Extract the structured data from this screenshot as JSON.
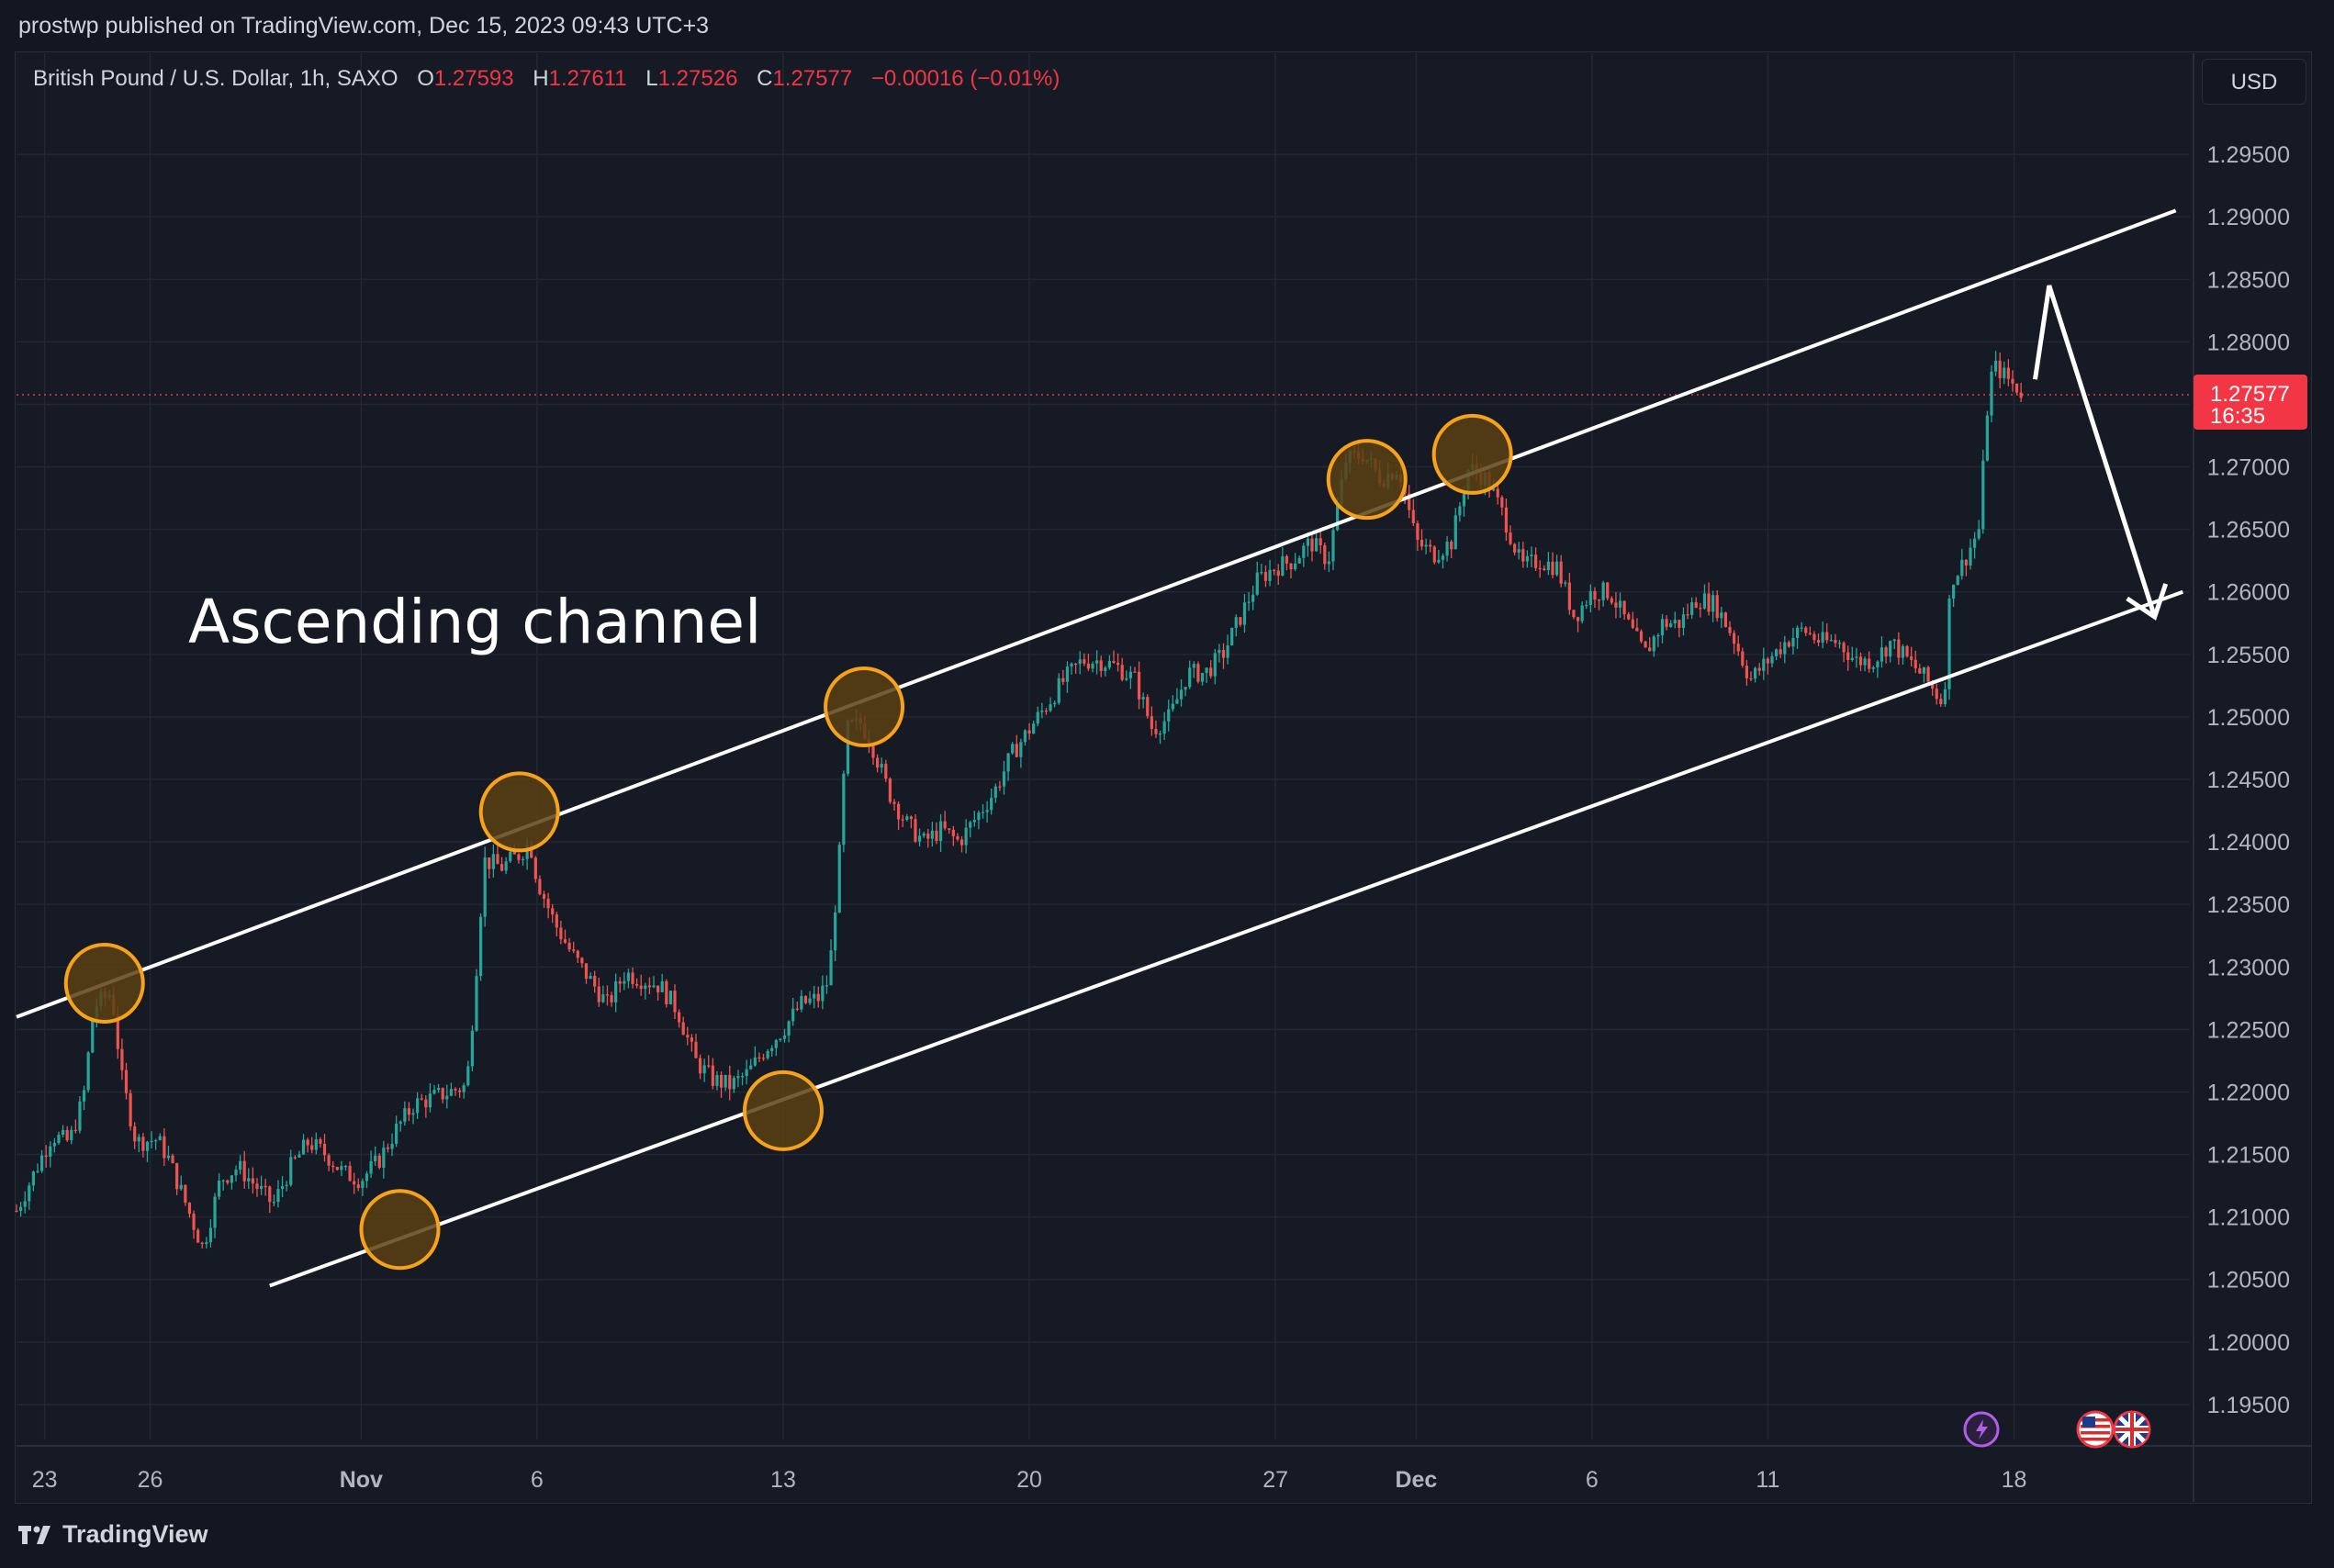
{
  "header": {
    "publish_line": "prostwp published on TradingView.com, Dec 15, 2023 09:43 UTC+3"
  },
  "legend": {
    "symbol": "British Pound / U.S. Dollar, 1h, SAXO",
    "open_label": "O",
    "open": "1.27593",
    "high_label": "H",
    "high": "1.27611",
    "low_label": "L",
    "low": "1.27526",
    "close_label": "C",
    "close": "1.27577",
    "change": "−0.00016 (−0.01%)"
  },
  "currency_button": "USD",
  "price_tag": {
    "price": "1.27577",
    "countdown": "16:35"
  },
  "footer": {
    "brand": "TradingView"
  },
  "colors": {
    "background": "#161a25",
    "grid": "#232733",
    "up": "#26a69a",
    "down": "#ef5350",
    "price_tag": "#f23645",
    "circle_stroke": "#f7a21b",
    "circle_fill": "#5a4114",
    "line": "#ffffff"
  },
  "icons": [
    "lightning-event-icon",
    "us-flag-icon",
    "uk-flag-icon",
    "tradingview-logo-icon"
  ],
  "chart_data": {
    "type": "candlestick",
    "title": "British Pound / U.S. Dollar, 1h, SAXO",
    "annotation": "Ascending channel",
    "yaxis_ticks": [
      "1.29500",
      "1.29000",
      "1.28500",
      "1.28000",
      "1.27500",
      "1.27000",
      "1.26500",
      "1.26000",
      "1.25500",
      "1.25000",
      "1.24500",
      "1.24000",
      "1.23500",
      "1.23000",
      "1.22500",
      "1.22000",
      "1.21500",
      "1.21000",
      "1.20500",
      "1.20000",
      "1.19500"
    ],
    "ylim": [
      1.19,
      1.3
    ],
    "xaxis_ticks": [
      {
        "label": "23",
        "day": 0
      },
      {
        "label": "26",
        "day": 3
      },
      {
        "label": "Nov",
        "day": 9
      },
      {
        "label": "6",
        "day": 14
      },
      {
        "label": "13",
        "day": 21
      },
      {
        "label": "20",
        "day": 28
      },
      {
        "label": "27",
        "day": 35
      },
      {
        "label": "Dec",
        "day": 39
      },
      {
        "label": "6",
        "day": 44
      },
      {
        "label": "11",
        "day": 49
      },
      {
        "label": "18",
        "day": 56
      }
    ],
    "xlim": [
      -0.8,
      61
    ],
    "price_path": [
      [
        -0.8,
        1.2105
      ],
      [
        0.2,
        1.2165
      ],
      [
        0.7,
        1.216
      ],
      [
        1.1,
        1.2195
      ],
      [
        1.4,
        1.2268
      ],
      [
        1.9,
        1.228
      ],
      [
        2.2,
        1.221
      ],
      [
        2.6,
        1.216
      ],
      [
        3.2,
        1.2162
      ],
      [
        3.5,
        1.2148
      ],
      [
        4.5,
        1.2075
      ],
      [
        5.0,
        1.213
      ],
      [
        5.5,
        1.214
      ],
      [
        6.0,
        1.2125
      ],
      [
        6.5,
        1.211
      ],
      [
        7.0,
        1.214
      ],
      [
        7.5,
        1.216
      ],
      [
        8.0,
        1.215
      ],
      [
        8.5,
        1.2135
      ],
      [
        9.0,
        1.213
      ],
      [
        9.5,
        1.2145
      ],
      [
        10.0,
        1.217
      ],
      [
        10.5,
        1.219
      ],
      [
        11.0,
        1.2195
      ],
      [
        12.0,
        1.2205
      ],
      [
        12.2,
        1.227
      ],
      [
        12.5,
        1.2385
      ],
      [
        13.0,
        1.238
      ],
      [
        13.5,
        1.239
      ],
      [
        13.8,
        1.24
      ],
      [
        14.0,
        1.237
      ],
      [
        14.5,
        1.2335
      ],
      [
        15.0,
        1.231
      ],
      [
        15.5,
        1.229
      ],
      [
        16.0,
        1.227
      ],
      [
        16.5,
        1.2295
      ],
      [
        17.0,
        1.229
      ],
      [
        17.5,
        1.2285
      ],
      [
        18.0,
        1.2265
      ],
      [
        18.5,
        1.2225
      ],
      [
        19.0,
        1.221
      ],
      [
        19.5,
        1.2205
      ],
      [
        20.0,
        1.2215
      ],
      [
        20.5,
        1.2235
      ],
      [
        21.0,
        1.225
      ],
      [
        21.5,
        1.227
      ],
      [
        22.0,
        1.2275
      ],
      [
        22.3,
        1.229
      ],
      [
        22.6,
        1.239
      ],
      [
        22.8,
        1.249
      ],
      [
        23.2,
        1.2495
      ],
      [
        23.5,
        1.248
      ],
      [
        24.0,
        1.244
      ],
      [
        24.5,
        1.2415
      ],
      [
        25.0,
        1.24
      ],
      [
        25.5,
        1.241
      ],
      [
        26.0,
        1.24
      ],
      [
        26.5,
        1.242
      ],
      [
        27.0,
        1.244
      ],
      [
        27.5,
        1.247
      ],
      [
        28.0,
        1.249
      ],
      [
        28.5,
        1.251
      ],
      [
        29.0,
        1.253
      ],
      [
        29.5,
        1.2545
      ],
      [
        30.0,
        1.2545
      ],
      [
        30.5,
        1.254
      ],
      [
        31.0,
        1.253
      ],
      [
        31.5,
        1.249
      ],
      [
        32.0,
        1.25
      ],
      [
        32.5,
        1.2535
      ],
      [
        33.0,
        1.2535
      ],
      [
        33.5,
        1.255
      ],
      [
        34.0,
        1.258
      ],
      [
        34.5,
        1.261
      ],
      [
        35.0,
        1.262
      ],
      [
        35.5,
        1.2625
      ],
      [
        36.0,
        1.264
      ],
      [
        36.5,
        1.2625
      ],
      [
        37.0,
        1.2705
      ],
      [
        37.5,
        1.271
      ],
      [
        38.0,
        1.269
      ],
      [
        38.5,
        1.27
      ],
      [
        39.0,
        1.264
      ],
      [
        39.5,
        1.263
      ],
      [
        40.0,
        1.264
      ],
      [
        40.5,
        1.27
      ],
      [
        41.0,
        1.269
      ],
      [
        41.5,
        1.266
      ],
      [
        42.0,
        1.262
      ],
      [
        42.5,
        1.2625
      ],
      [
        43.0,
        1.262
      ],
      [
        43.5,
        1.258
      ],
      [
        44.0,
        1.26
      ],
      [
        44.5,
        1.26
      ],
      [
        45.0,
        1.2575
      ],
      [
        45.5,
        1.255
      ],
      [
        46.0,
        1.2575
      ],
      [
        46.5,
        1.2575
      ],
      [
        47.0,
        1.2595
      ],
      [
        47.5,
        1.259
      ],
      [
        48.0,
        1.2565
      ],
      [
        48.5,
        1.253
      ],
      [
        49.0,
        1.2545
      ],
      [
        49.5,
        1.256
      ],
      [
        50.0,
        1.257
      ],
      [
        50.5,
        1.256
      ],
      [
        51.0,
        1.256
      ],
      [
        51.5,
        1.2545
      ],
      [
        52.0,
        1.2545
      ],
      [
        52.5,
        1.256
      ],
      [
        53.0,
        1.2545
      ],
      [
        53.5,
        1.253
      ],
      [
        54.0,
        1.251
      ],
      [
        54.2,
        1.261
      ],
      [
        54.5,
        1.262
      ],
      [
        55.0,
        1.265
      ],
      [
        55.3,
        1.277
      ],
      [
        55.5,
        1.278
      ],
      [
        56.0,
        1.2765
      ],
      [
        56.3,
        1.2758
      ]
    ],
    "channel_upper": [
      [
        -0.8,
        1.226
      ],
      [
        60.6,
        1.2905
      ]
    ],
    "channel_lower": [
      [
        6.4,
        1.2045
      ],
      [
        60.8,
        1.26
      ]
    ],
    "touch_points": [
      [
        1.7,
        1.2287
      ],
      [
        13.5,
        1.2424
      ],
      [
        21.0,
        1.2185
      ],
      [
        10.1,
        1.209
      ],
      [
        23.3,
        1.2508
      ],
      [
        37.6,
        1.269
      ],
      [
        40.6,
        1.271
      ]
    ],
    "projection_arrow": [
      [
        56.6,
        1.277
      ],
      [
        57.0,
        1.2845
      ],
      [
        60.0,
        1.258
      ]
    ],
    "last_price": 1.27577
  }
}
